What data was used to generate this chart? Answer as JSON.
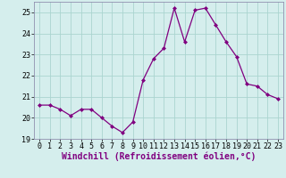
{
  "x": [
    0,
    1,
    2,
    3,
    4,
    5,
    6,
    7,
    8,
    9,
    10,
    11,
    12,
    13,
    14,
    15,
    16,
    17,
    18,
    19,
    20,
    21,
    22,
    23
  ],
  "y": [
    20.6,
    20.6,
    20.4,
    20.1,
    20.4,
    20.4,
    20.0,
    19.6,
    19.3,
    19.8,
    21.8,
    22.8,
    23.3,
    25.2,
    23.6,
    25.1,
    25.2,
    24.4,
    23.6,
    22.9,
    21.6,
    21.5,
    21.1,
    20.9
  ],
  "line_color": "#800080",
  "marker": "D",
  "marker_size": 2.0,
  "background_color": "#d5eeed",
  "grid_color": "#aad4d0",
  "xlabel": "Windchill (Refroidissement éolien,°C)",
  "ylim": [
    19,
    25.5
  ],
  "xlim": [
    -0.5,
    23.5
  ],
  "yticks": [
    19,
    20,
    21,
    22,
    23,
    24,
    25
  ],
  "xticks": [
    0,
    1,
    2,
    3,
    4,
    5,
    6,
    7,
    8,
    9,
    10,
    11,
    12,
    13,
    14,
    15,
    16,
    17,
    18,
    19,
    20,
    21,
    22,
    23
  ],
  "tick_fontsize": 6.0,
  "xlabel_fontsize": 7.0,
  "line_width": 0.9
}
